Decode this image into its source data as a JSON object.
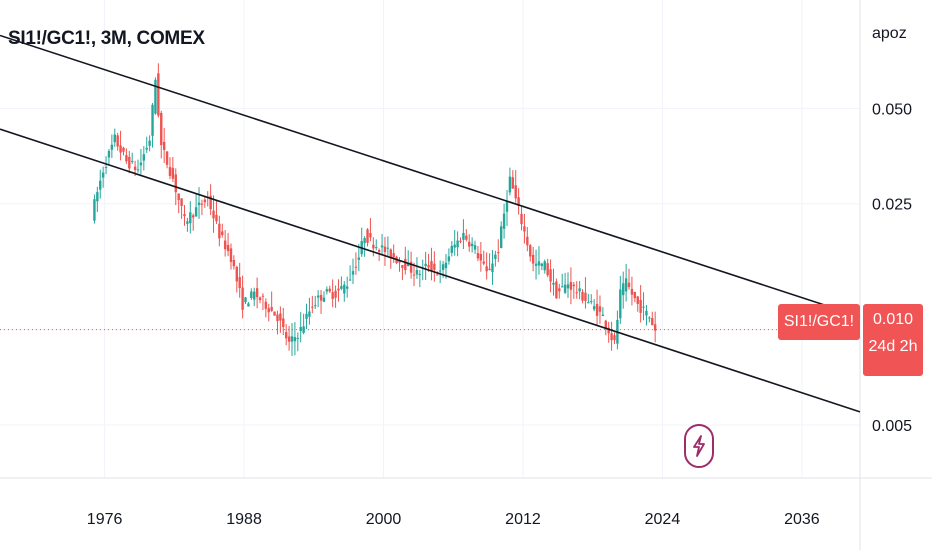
{
  "header": {
    "title": "SI1!/GC1!, 3M, COMEX",
    "scale_mode": "apoz"
  },
  "badges": {
    "symbol": "SI1!/GC1!",
    "last_price": "0.010",
    "countdown": "24d 2h",
    "event_icon": "lightning-bolt-icon"
  },
  "colors": {
    "up": "#26a69a",
    "down": "#ef5350",
    "badge": "#f05454",
    "trendline": "#131722",
    "event": "#9c2c6a",
    "grid": "#f0f3fa",
    "price_line": "#f05454"
  },
  "chart_data": {
    "type": "candlestick",
    "scale": "log",
    "y_ticks": [
      "0.050",
      "0.025",
      "0.010",
      "0.005"
    ],
    "x_ticks": [
      "1976",
      "1988",
      "2000",
      "2012",
      "2024",
      "2036"
    ],
    "x_range": [
      1967,
      2041
    ],
    "y_range": [
      0.0034,
      0.11
    ],
    "last_value": 0.01,
    "trendlines": [
      {
        "from": [
          1967,
          0.085
        ],
        "to": [
          2041,
          0.011
        ]
      },
      {
        "from": [
          1967,
          0.043
        ],
        "to": [
          2041,
          0.0055
        ]
      }
    ],
    "series": [
      {
        "x": 1975.0,
        "y": 0.023
      },
      {
        "x": 1976.0,
        "y": 0.032
      },
      {
        "x": 1977.0,
        "y": 0.04
      },
      {
        "x": 1978.0,
        "y": 0.034
      },
      {
        "x": 1979.0,
        "y": 0.032
      },
      {
        "x": 1980.0,
        "y": 0.04
      },
      {
        "x": 1980.5,
        "y": 0.062
      },
      {
        "x": 1981.0,
        "y": 0.038
      },
      {
        "x": 1982.0,
        "y": 0.03
      },
      {
        "x": 1983.0,
        "y": 0.022
      },
      {
        "x": 1984.0,
        "y": 0.024
      },
      {
        "x": 1985.0,
        "y": 0.026
      },
      {
        "x": 1986.0,
        "y": 0.02
      },
      {
        "x": 1987.0,
        "y": 0.017
      },
      {
        "x": 1988.0,
        "y": 0.012
      },
      {
        "x": 1989.0,
        "y": 0.013
      },
      {
        "x": 1990.0,
        "y": 0.012
      },
      {
        "x": 1991.0,
        "y": 0.011
      },
      {
        "x": 1992.0,
        "y": 0.009
      },
      {
        "x": 1993.0,
        "y": 0.01
      },
      {
        "x": 1994.0,
        "y": 0.012
      },
      {
        "x": 1995.0,
        "y": 0.013
      },
      {
        "x": 1996.0,
        "y": 0.013
      },
      {
        "x": 1997.0,
        "y": 0.014
      },
      {
        "x": 1998.0,
        "y": 0.017
      },
      {
        "x": 1998.5,
        "y": 0.02
      },
      {
        "x": 1999.0,
        "y": 0.019
      },
      {
        "x": 2000.0,
        "y": 0.018
      },
      {
        "x": 2001.0,
        "y": 0.017
      },
      {
        "x": 2002.0,
        "y": 0.016
      },
      {
        "x": 2003.0,
        "y": 0.015
      },
      {
        "x": 2004.0,
        "y": 0.016
      },
      {
        "x": 2005.0,
        "y": 0.015
      },
      {
        "x": 2006.0,
        "y": 0.018
      },
      {
        "x": 2007.0,
        "y": 0.02
      },
      {
        "x": 2008.0,
        "y": 0.018
      },
      {
        "x": 2009.0,
        "y": 0.015
      },
      {
        "x": 2010.0,
        "y": 0.018
      },
      {
        "x": 2011.0,
        "y": 0.03
      },
      {
        "x": 2012.0,
        "y": 0.022
      },
      {
        "x": 2013.0,
        "y": 0.016
      },
      {
        "x": 2014.0,
        "y": 0.016
      },
      {
        "x": 2015.0,
        "y": 0.013
      },
      {
        "x": 2016.0,
        "y": 0.014
      },
      {
        "x": 2017.0,
        "y": 0.013
      },
      {
        "x": 2018.0,
        "y": 0.012
      },
      {
        "x": 2019.0,
        "y": 0.011
      },
      {
        "x": 2020.0,
        "y": 0.009
      },
      {
        "x": 2020.5,
        "y": 0.013
      },
      {
        "x": 2021.0,
        "y": 0.014
      },
      {
        "x": 2022.0,
        "y": 0.012
      },
      {
        "x": 2023.0,
        "y": 0.011
      },
      {
        "x": 2023.5,
        "y": 0.01
      }
    ]
  }
}
